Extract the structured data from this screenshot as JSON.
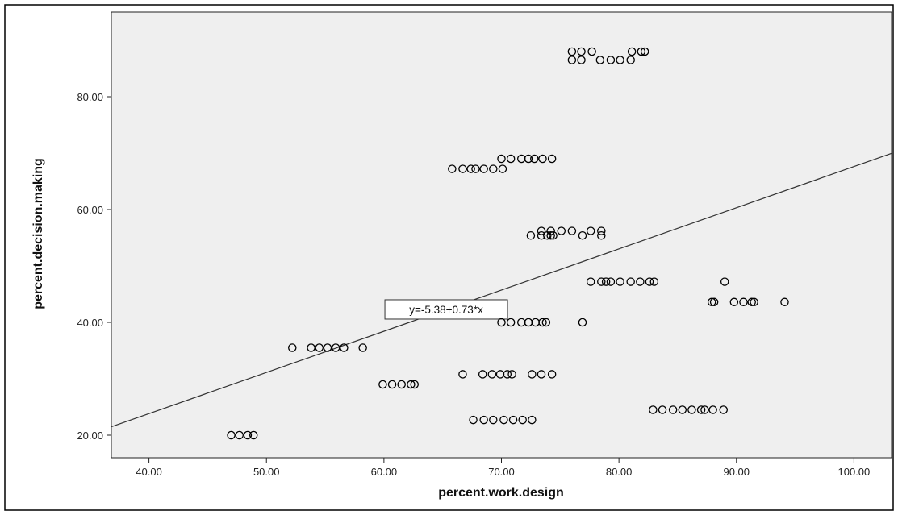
{
  "chart_data": {
    "type": "scatter",
    "title": "",
    "xlabel": "percent.work.design",
    "ylabel": "percent.decision.making",
    "xlim": [
      36.8,
      103.2
    ],
    "ylim": [
      16.0,
      95.0
    ],
    "x_ticks": [
      "40.00",
      "50.00",
      "60.00",
      "70.00",
      "80.00",
      "90.00",
      "100.00"
    ],
    "y_ticks": [
      "20.00",
      "40.00",
      "60.00",
      "80.00"
    ],
    "grid": false,
    "legend": "none",
    "fit_line": {
      "intercept": -5.38,
      "slope": 0.73,
      "label": "y=-5.38+0.73*x"
    },
    "colors": {
      "plot_background": "#efefef",
      "marker_stroke": "#000000",
      "fit_line": "#333333"
    },
    "series": [
      {
        "points": [
          [
            47.0,
            20.0
          ],
          [
            47.7,
            20.0
          ],
          [
            48.4,
            20.0
          ],
          [
            48.9,
            20.0
          ],
          [
            52.2,
            35.5
          ],
          [
            53.8,
            35.5
          ],
          [
            54.5,
            35.5
          ],
          [
            55.2,
            35.5
          ],
          [
            55.9,
            35.5
          ],
          [
            56.6,
            35.5
          ],
          [
            58.2,
            35.5
          ],
          [
            59.9,
            29.0
          ],
          [
            60.7,
            29.0
          ],
          [
            61.5,
            29.0
          ],
          [
            62.3,
            29.0
          ],
          [
            62.6,
            29.0
          ],
          [
            66.7,
            30.8
          ],
          [
            68.4,
            30.8
          ],
          [
            69.2,
            30.8
          ],
          [
            69.9,
            30.8
          ],
          [
            70.5,
            30.8
          ],
          [
            70.9,
            30.8
          ],
          [
            72.6,
            30.8
          ],
          [
            73.4,
            30.8
          ],
          [
            74.3,
            30.8
          ],
          [
            67.6,
            22.7
          ],
          [
            68.5,
            22.7
          ],
          [
            69.3,
            22.7
          ],
          [
            70.2,
            22.7
          ],
          [
            71.0,
            22.7
          ],
          [
            71.8,
            22.7
          ],
          [
            72.6,
            22.7
          ],
          [
            70.0,
            40.0
          ],
          [
            70.8,
            40.0
          ],
          [
            71.7,
            40.0
          ],
          [
            72.3,
            40.0
          ],
          [
            72.9,
            40.0
          ],
          [
            73.5,
            40.0
          ],
          [
            73.8,
            40.0
          ],
          [
            76.9,
            40.0
          ],
          [
            65.8,
            67.2
          ],
          [
            66.7,
            67.2
          ],
          [
            67.4,
            67.2
          ],
          [
            67.8,
            67.2
          ],
          [
            68.5,
            67.2
          ],
          [
            69.3,
            67.2
          ],
          [
            70.1,
            67.2
          ],
          [
            70.0,
            69.0
          ],
          [
            70.8,
            69.0
          ],
          [
            71.7,
            69.0
          ],
          [
            72.3,
            69.0
          ],
          [
            72.8,
            69.0
          ],
          [
            73.5,
            69.0
          ],
          [
            74.3,
            69.0
          ],
          [
            72.5,
            55.4
          ],
          [
            73.4,
            55.4
          ],
          [
            73.9,
            55.4
          ],
          [
            74.2,
            55.4
          ],
          [
            74.4,
            55.4
          ],
          [
            76.9,
            55.4
          ],
          [
            78.5,
            55.4
          ],
          [
            73.4,
            56.2
          ],
          [
            74.2,
            56.2
          ],
          [
            75.1,
            56.2
          ],
          [
            76.0,
            56.2
          ],
          [
            77.6,
            56.2
          ],
          [
            78.5,
            56.2
          ],
          [
            76.0,
            86.5
          ],
          [
            76.8,
            86.5
          ],
          [
            78.4,
            86.5
          ],
          [
            79.3,
            86.5
          ],
          [
            80.1,
            86.5
          ],
          [
            81.0,
            86.5
          ],
          [
            76.0,
            88.0
          ],
          [
            76.8,
            88.0
          ],
          [
            77.7,
            88.0
          ],
          [
            81.1,
            88.0
          ],
          [
            81.9,
            88.0
          ],
          [
            82.2,
            88.0
          ],
          [
            77.6,
            47.2
          ],
          [
            78.5,
            47.2
          ],
          [
            78.9,
            47.2
          ],
          [
            79.3,
            47.2
          ],
          [
            80.1,
            47.2
          ],
          [
            81.0,
            47.2
          ],
          [
            81.8,
            47.2
          ],
          [
            82.6,
            47.2
          ],
          [
            83.0,
            47.2
          ],
          [
            82.9,
            24.5
          ],
          [
            83.7,
            24.5
          ],
          [
            84.6,
            24.5
          ],
          [
            85.4,
            24.5
          ],
          [
            86.2,
            24.5
          ],
          [
            87.0,
            24.5
          ],
          [
            87.3,
            24.5
          ],
          [
            88.0,
            24.5
          ],
          [
            88.9,
            24.5
          ],
          [
            87.9,
            43.6
          ],
          [
            88.1,
            43.6
          ],
          [
            89.8,
            43.6
          ],
          [
            90.6,
            43.6
          ],
          [
            91.3,
            43.6
          ],
          [
            91.5,
            43.6
          ],
          [
            94.1,
            43.6
          ],
          [
            89.0,
            47.2
          ]
        ]
      }
    ]
  }
}
